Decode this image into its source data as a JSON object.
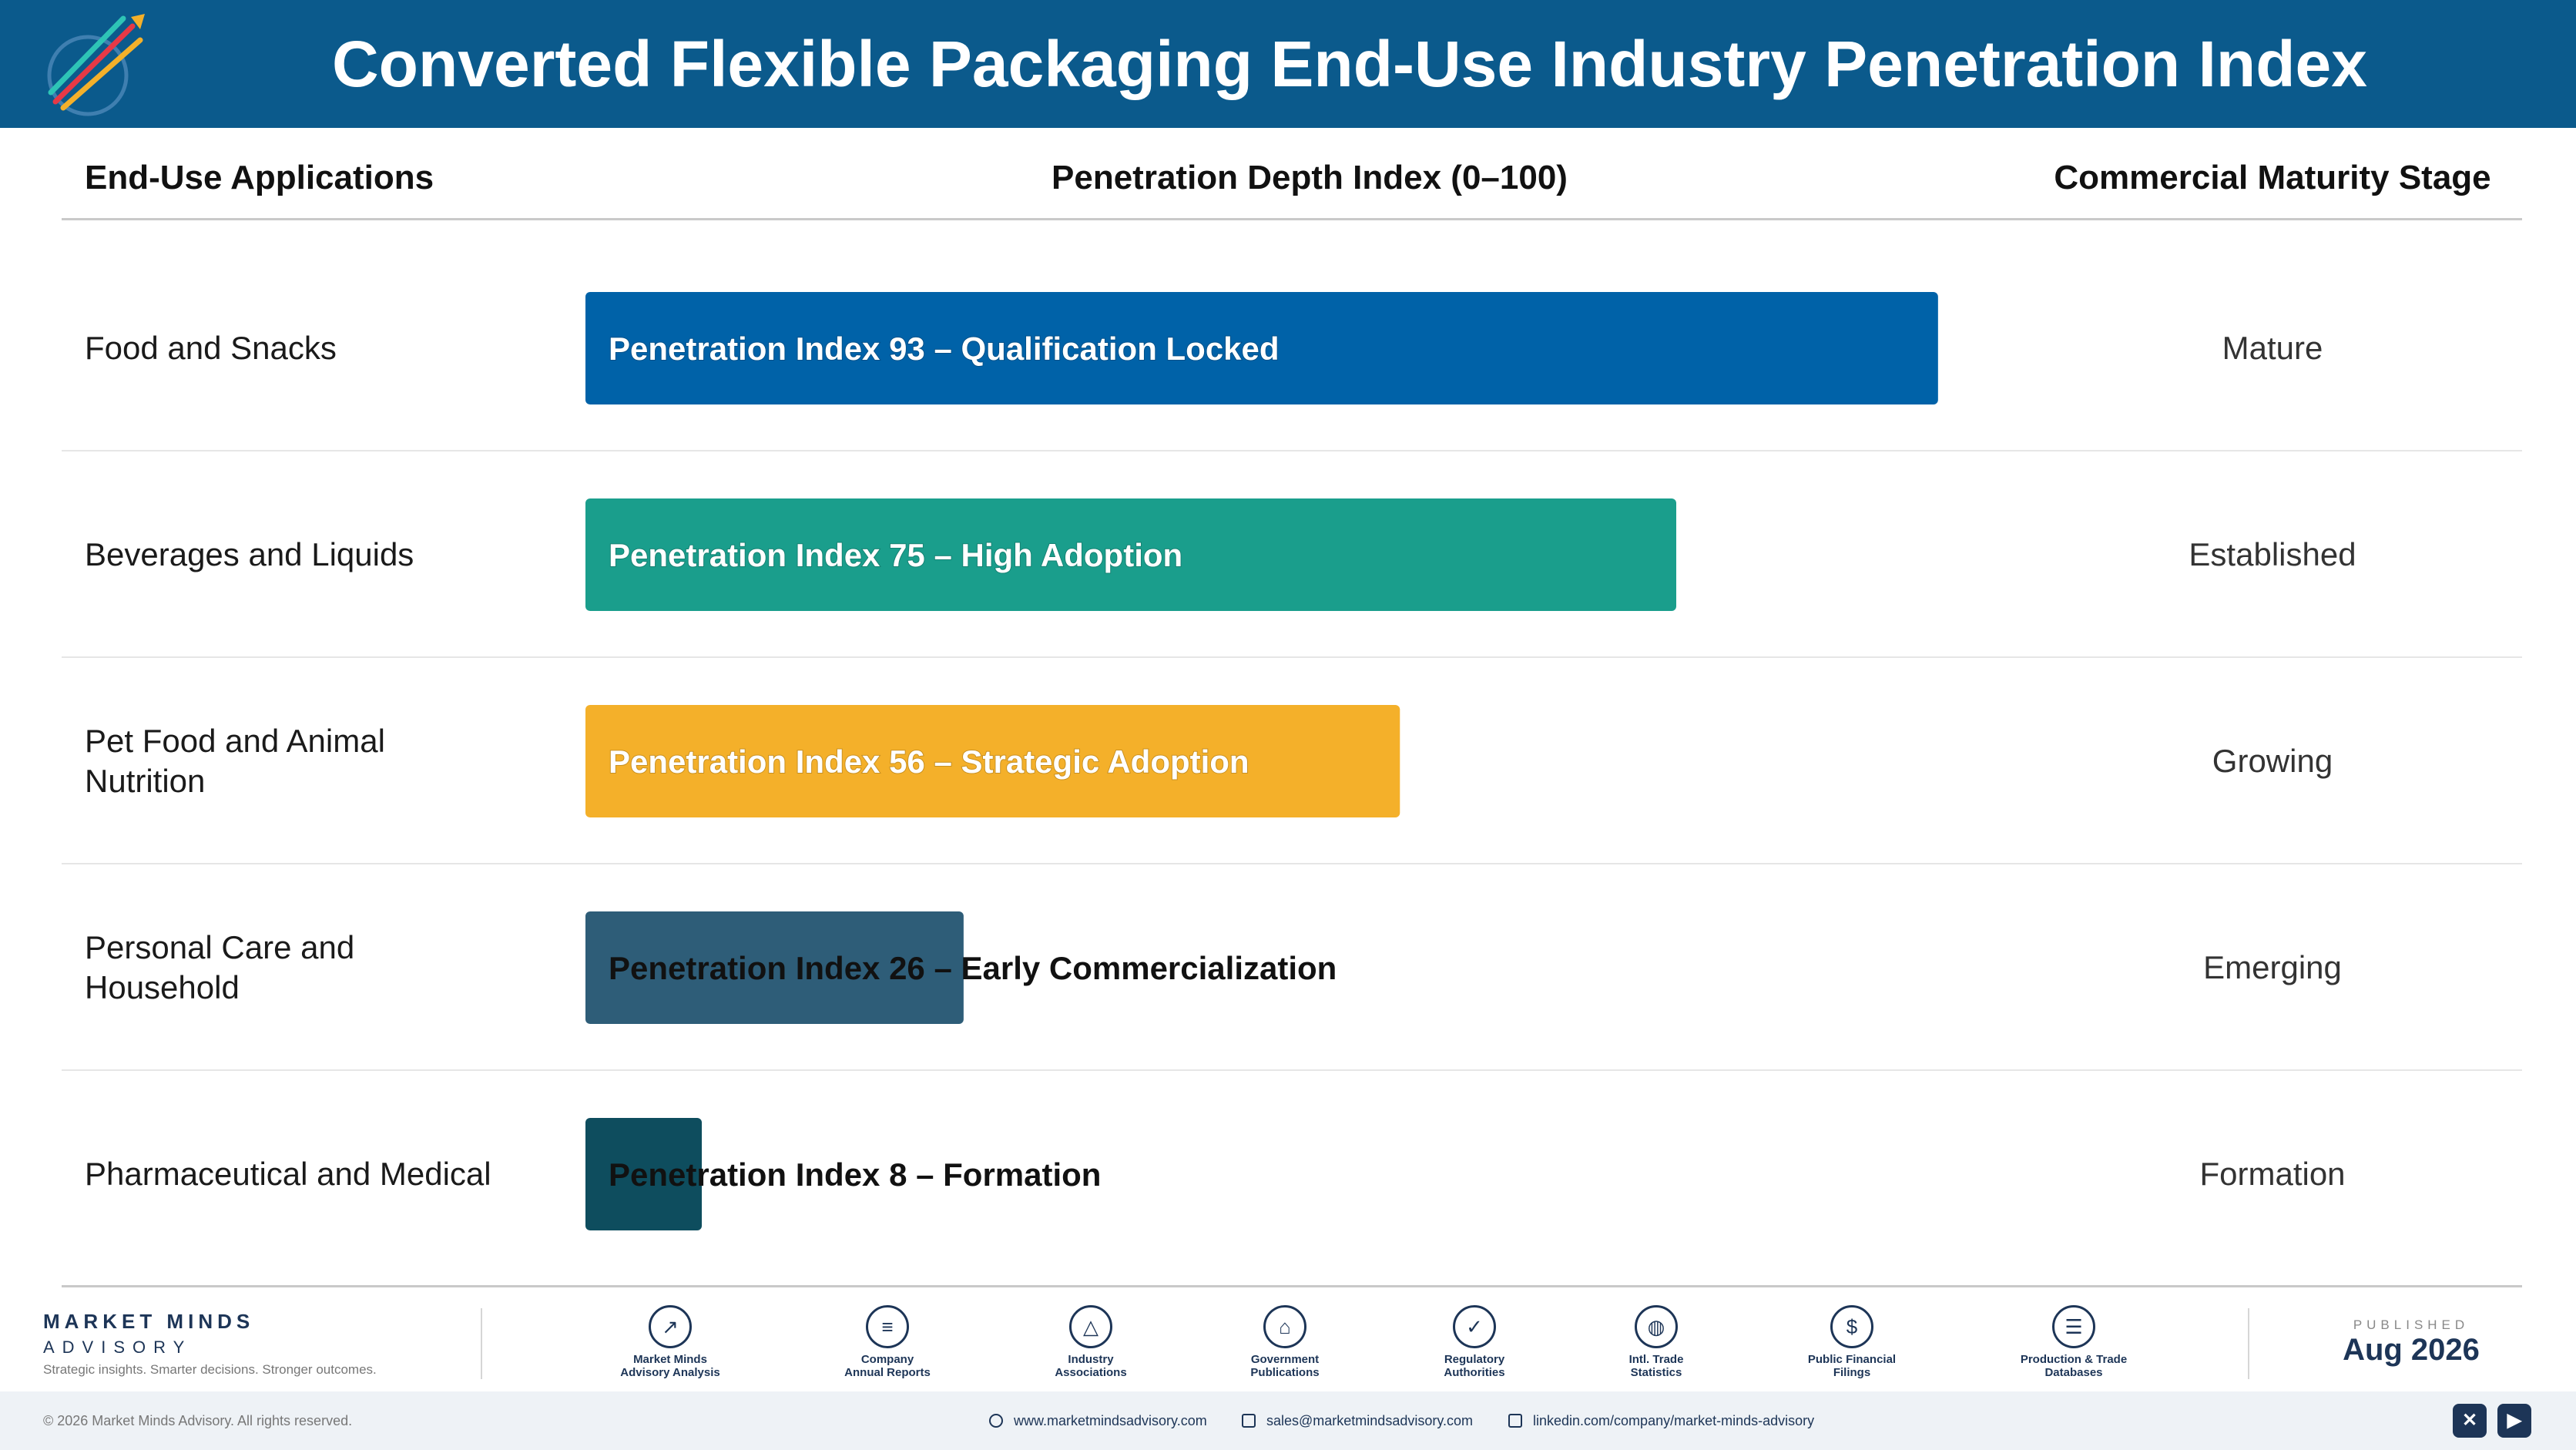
{
  "header": {
    "title": "Converted Flexible Packaging End-Use Industry Penetration Index"
  },
  "columns": {
    "applications": "End-Use Applications",
    "index": "Penetration Depth Index (0–100)",
    "stage": "Commercial Maturity Stage"
  },
  "chart_data": {
    "type": "bar",
    "orientation": "horizontal",
    "xlim": [
      0,
      100
    ],
    "categories": [
      "Food and Snacks",
      "Beverages and Liquids",
      "Pet Food and Animal Nutrition",
      "Personal Care and Household",
      "Pharmaceutical and Medical"
    ],
    "values": [
      93,
      75,
      56,
      26,
      8
    ],
    "bar_labels": [
      "Penetration Index 93 – Qualification Locked",
      "Penetration Index 75 – High Adoption",
      "Penetration Index 56 – Strategic Adoption",
      "Penetration Index 26 – Early Commercialization",
      "Penetration Index 8 – Formation"
    ],
    "stages": [
      "Mature",
      "Established",
      "Growing",
      "Emerging",
      "Formation"
    ],
    "colors": [
      "#0062a8",
      "#1a9e8c",
      "#f4b02a",
      "#2e5d78",
      "#0e4d5e"
    ]
  },
  "footer": {
    "brand_name": "MARKET MINDS",
    "brand_sub": "ADVISORY",
    "brand_tagline": "Strategic insights. Smarter decisions. Stronger outcomes.",
    "sources": [
      {
        "icon": "trend-chart-icon",
        "glyph": "↗",
        "label_1": "Market Minds",
        "label_2": "Advisory Analysis"
      },
      {
        "icon": "document-icon",
        "glyph": "≡",
        "label_1": "Company",
        "label_2": "Annual Reports"
      },
      {
        "icon": "network-icon",
        "glyph": "△",
        "label_1": "Industry",
        "label_2": "Associations"
      },
      {
        "icon": "government-building-icon",
        "glyph": "⌂",
        "label_1": "Government",
        "label_2": "Publications"
      },
      {
        "icon": "shield-icon",
        "glyph": "✓",
        "label_1": "Regulatory",
        "label_2": "Authorities"
      },
      {
        "icon": "globe-icon",
        "glyph": "◍",
        "label_1": "Intl. Trade",
        "label_2": "Statistics"
      },
      {
        "icon": "dollar-coin-icon",
        "glyph": "$",
        "label_1": "Public Financial",
        "label_2": "Filings"
      },
      {
        "icon": "database-icon",
        "glyph": "☰",
        "label_1": "Production & Trade",
        "label_2": "Databases"
      }
    ],
    "published_kicker": "PUBLISHED",
    "published_date": "Aug 2026",
    "copyright": "© 2026 Market Minds Advisory. All rights reserved.",
    "website": "www.marketmindsadvisory.com",
    "email": "sales@marketmindsadvisory.com",
    "linkedin": "linkedin.com/company/market-minds-advisory"
  }
}
